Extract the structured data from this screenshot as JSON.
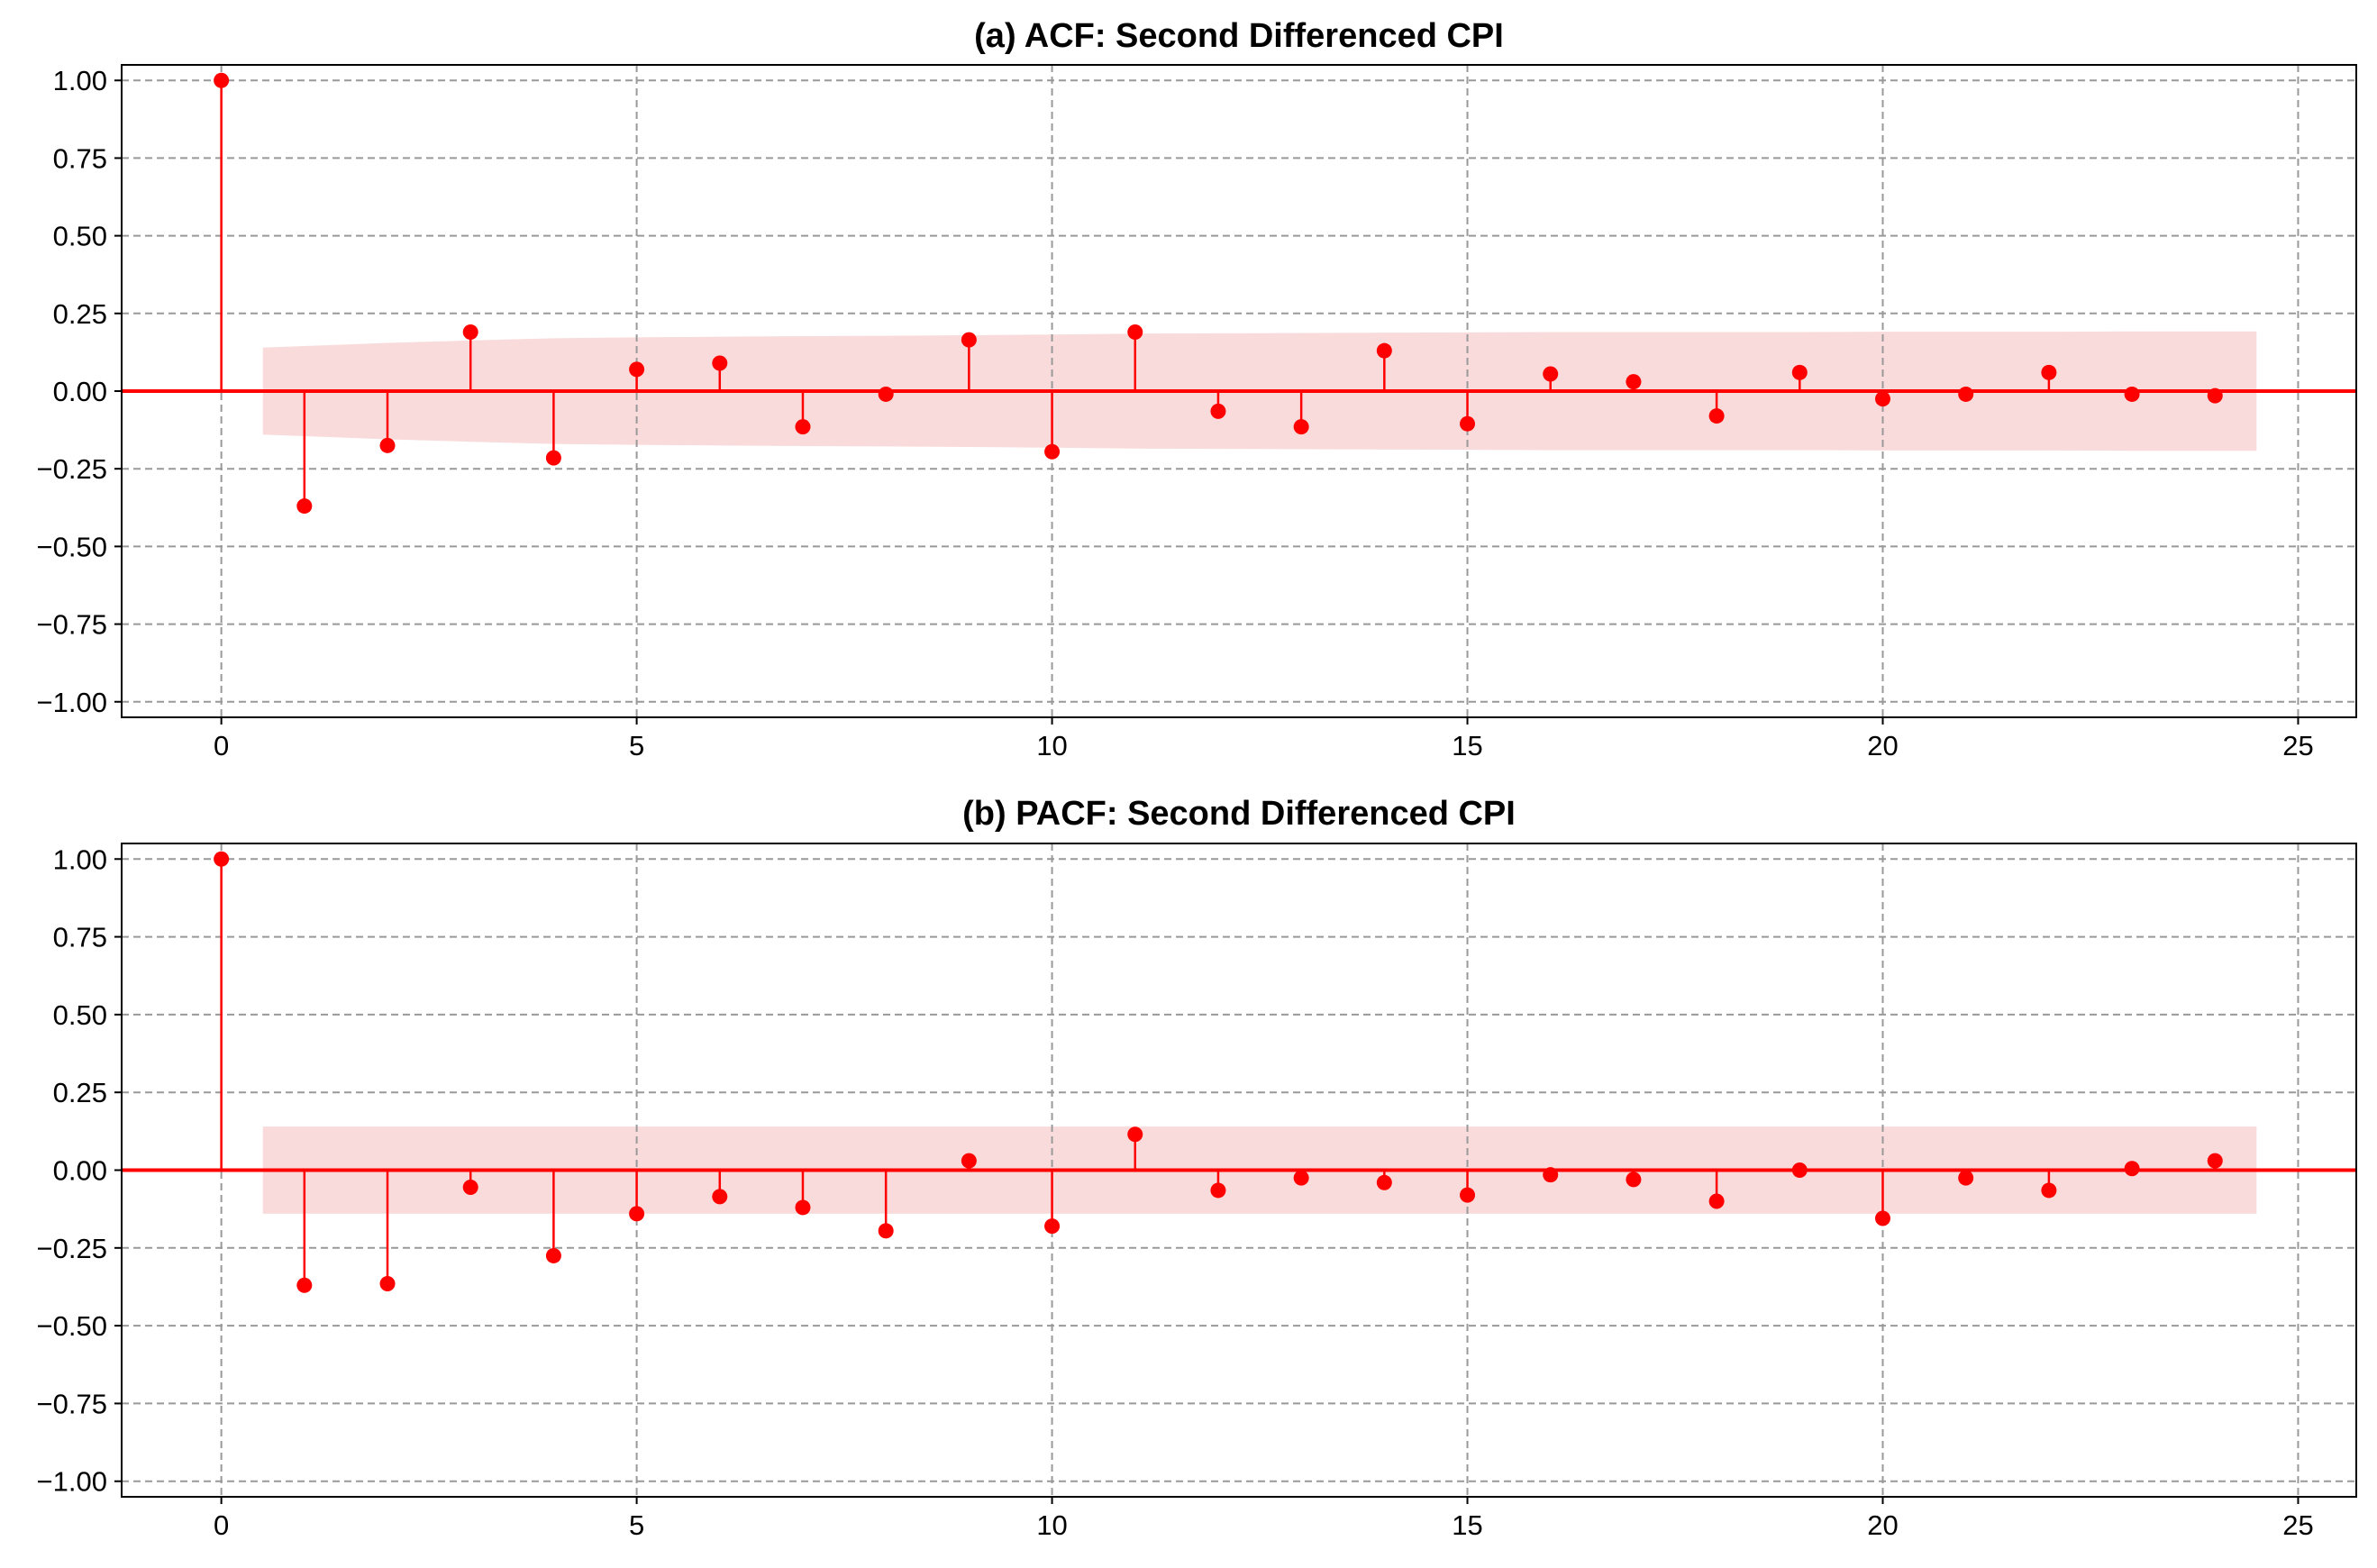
{
  "chart_data": [
    {
      "type": "stem",
      "title": "(a) ACF: Second Differenced CPI",
      "xlim": [
        -1.2,
        25.7
      ],
      "ylim": [
        -1.05,
        1.05
      ],
      "x_ticks": [
        0,
        5,
        10,
        15,
        20,
        25
      ],
      "y_ticks": [
        1.0,
        0.75,
        0.5,
        0.25,
        0.0,
        -0.25,
        -0.5,
        -0.75,
        -1.0
      ],
      "x_tick_labels": [
        "0",
        "5",
        "10",
        "15",
        "20",
        "25"
      ],
      "y_tick_labels": [
        "1.00",
        "0.75",
        "0.50",
        "0.25",
        "0.00",
        "−0.25",
        "−0.50",
        "−0.75",
        "−1.00"
      ],
      "grid": true,
      "color": "#ff0000",
      "band_color": "#fadbdb",
      "lags": [
        0,
        1,
        2,
        3,
        4,
        5,
        6,
        7,
        8,
        9,
        10,
        11,
        12,
        13,
        14,
        15,
        16,
        17,
        18,
        19,
        20,
        21,
        22,
        23,
        24
      ],
      "values": [
        1.0,
        -0.37,
        -0.175,
        0.19,
        -0.215,
        0.07,
        0.09,
        -0.115,
        -0.01,
        0.165,
        -0.195,
        0.19,
        -0.065,
        -0.115,
        0.13,
        -0.105,
        0.055,
        0.03,
        -0.08,
        0.06,
        -0.025,
        -0.01,
        0.06,
        -0.01,
        -0.015
      ],
      "confidence_band": {
        "x": [
          0.5,
          1,
          2,
          3,
          4,
          5,
          6,
          7,
          8,
          9,
          10,
          11,
          12,
          13,
          14,
          15,
          16,
          17,
          18,
          19,
          20,
          21,
          22,
          23,
          24,
          24.5
        ],
        "upper": [
          0.14,
          0.145,
          0.155,
          0.163,
          0.17,
          0.173,
          0.175,
          0.177,
          0.178,
          0.18,
          0.182,
          0.185,
          0.186,
          0.187,
          0.188,
          0.189,
          0.19,
          0.19,
          0.19,
          0.19,
          0.191,
          0.191,
          0.191,
          0.192,
          0.192,
          0.192
        ]
      }
    },
    {
      "type": "stem",
      "title": "(b) PACF: Second Differenced CPI",
      "xlim": [
        -1.2,
        25.7
      ],
      "ylim": [
        -1.05,
        1.05
      ],
      "x_ticks": [
        0,
        5,
        10,
        15,
        20,
        25
      ],
      "y_ticks": [
        1.0,
        0.75,
        0.5,
        0.25,
        0.0,
        -0.25,
        -0.5,
        -0.75,
        -1.0
      ],
      "x_tick_labels": [
        "0",
        "5",
        "10",
        "15",
        "20",
        "25"
      ],
      "y_tick_labels": [
        "1.00",
        "0.75",
        "0.50",
        "0.25",
        "0.00",
        "−0.25",
        "−0.50",
        "−0.75",
        "−1.00"
      ],
      "grid": true,
      "color": "#ff0000",
      "band_color": "#fadbdb",
      "lags": [
        0,
        1,
        2,
        3,
        4,
        5,
        6,
        7,
        8,
        9,
        10,
        11,
        12,
        13,
        14,
        15,
        16,
        17,
        18,
        19,
        20,
        21,
        22,
        23,
        24
      ],
      "values": [
        1.0,
        -0.37,
        -0.365,
        -0.055,
        -0.275,
        -0.14,
        -0.085,
        -0.12,
        -0.195,
        0.03,
        -0.18,
        0.115,
        -0.065,
        -0.025,
        -0.04,
        -0.08,
        -0.015,
        -0.03,
        -0.1,
        0.0,
        -0.155,
        -0.025,
        -0.065,
        0.005,
        0.03
      ],
      "confidence_band": {
        "x": [
          0.5,
          24.5
        ],
        "upper": [
          0.14,
          0.14
        ]
      }
    }
  ]
}
